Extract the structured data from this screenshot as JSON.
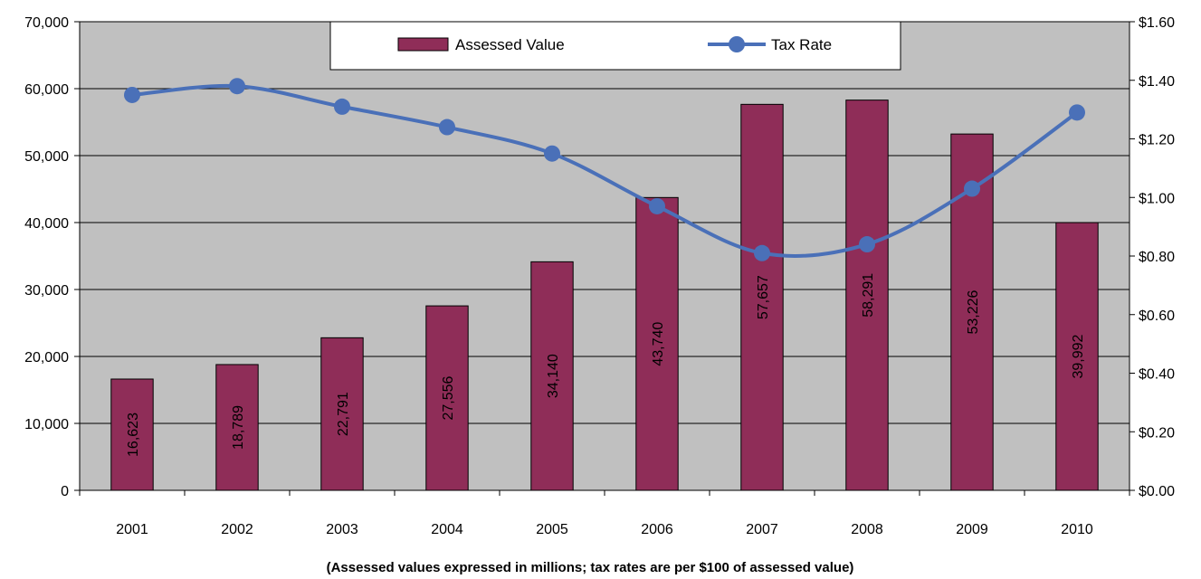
{
  "chart_data": {
    "type": "bar",
    "categories": [
      "2001",
      "2002",
      "2003",
      "2004",
      "2005",
      "2006",
      "2007",
      "2008",
      "2009",
      "2010"
    ],
    "series": [
      {
        "name": "Assessed Value",
        "type": "bar",
        "axis": "left",
        "values": [
          16623,
          18789,
          22791,
          27556,
          34140,
          43740,
          57657,
          58291,
          53226,
          39992
        ],
        "labels": [
          "16,623",
          "18,789",
          "22,791",
          "27,556",
          "34,140",
          "43,740",
          "57,657",
          "58,291",
          "53,226",
          "39,992"
        ]
      },
      {
        "name": "Tax Rate",
        "type": "line",
        "axis": "right",
        "values": [
          1.35,
          1.38,
          1.31,
          1.24,
          1.15,
          0.97,
          0.81,
          0.84,
          1.03,
          1.29
        ]
      }
    ],
    "y_left": {
      "ylim": [
        0,
        70000
      ],
      "ticks": [
        0,
        10000,
        20000,
        30000,
        40000,
        50000,
        60000,
        70000
      ],
      "tick_labels": [
        "0",
        "10,000",
        "20,000",
        "30,000",
        "40,000",
        "50,000",
        "60,000",
        "70,000"
      ]
    },
    "y_right": {
      "ylim": [
        0,
        1.6
      ],
      "ticks": [
        0,
        0.2,
        0.4,
        0.6,
        0.8,
        1.0,
        1.2,
        1.4,
        1.6
      ],
      "tick_labels": [
        "$0.00",
        "$0.20",
        "$0.40",
        "$0.60",
        "$0.80",
        "$1.00",
        "$1.20",
        "$1.40",
        "$1.60"
      ]
    },
    "caption": "(Assessed values expressed in millions; tax rates are per $100 of assessed value)",
    "legend": {
      "position": "top-center"
    },
    "grid": true,
    "colors": {
      "bar": "#8f2d58",
      "line": "#4a70b8",
      "plot_bg": "#c0c0c0",
      "grid": "#000000"
    }
  }
}
